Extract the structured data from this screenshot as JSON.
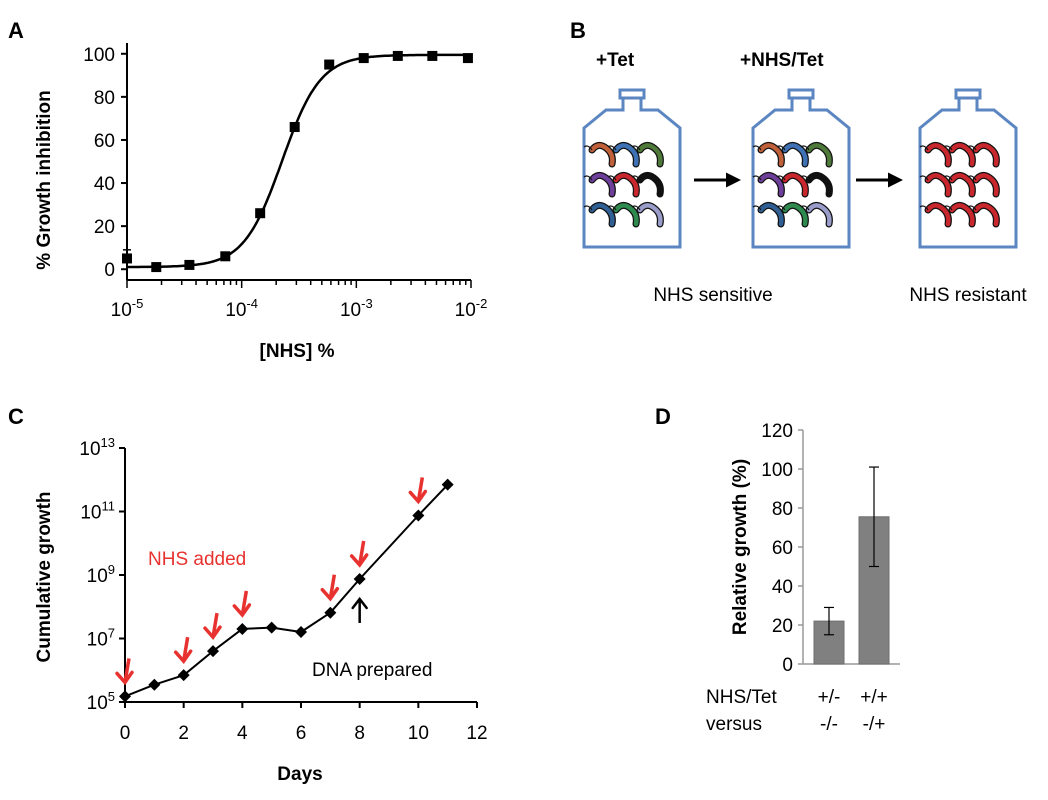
{
  "colors": {
    "axis": "#000000",
    "bar_fill": "#808080",
    "arrow_red": "#e8322f",
    "bottle_stroke": "#5b86c1",
    "grid_axis_d": "#999999"
  },
  "panelA": {
    "letter": "A",
    "chart_data": {
      "type": "scatter",
      "xscale": "log",
      "xlim": [
        1e-05,
        0.01
      ],
      "ylim": [
        -5,
        105
      ],
      "xlabel": "[NHS] %",
      "ylabel": "% Growth inhibition",
      "yticks": [
        0,
        20,
        40,
        60,
        80,
        100
      ],
      "xticks": [
        {
          "value": 1e-05,
          "base": "10",
          "exp": "-5"
        },
        {
          "value": 0.0001,
          "base": "10",
          "exp": "-4"
        },
        {
          "value": 0.001,
          "base": "10",
          "exp": "-3"
        },
        {
          "value": 0.01,
          "base": "10",
          "exp": "-2"
        }
      ],
      "points": [
        {
          "x": 1e-05,
          "y": 5,
          "err": 4
        },
        {
          "x": 1.8e-05,
          "y": 1
        },
        {
          "x": 3.5e-05,
          "y": 2
        },
        {
          "x": 7.2e-05,
          "y": 6
        },
        {
          "x": 0.000145,
          "y": 26
        },
        {
          "x": 0.00029,
          "y": 66
        },
        {
          "x": 0.00058,
          "y": 95
        },
        {
          "x": 0.00116,
          "y": 98
        },
        {
          "x": 0.0023,
          "y": 99
        },
        {
          "x": 0.0046,
          "y": 99
        },
        {
          "x": 0.0094,
          "y": 98
        }
      ],
      "fit": {
        "bottom": 1,
        "top": 99.5,
        "ec50": 0.000225,
        "hill": 2.6
      }
    }
  },
  "panelB": {
    "letter": "B",
    "stage_labels": [
      "+Tet",
      "+NHS/Tet"
    ],
    "caption_sensitive": "NHS sensitive",
    "caption_resistant": "NHS resistant",
    "bottles": [
      {
        "colors": [
          "#c0603a",
          "#3e72b5",
          "#4f7a3a",
          "#6d3f9a",
          "#c8272d",
          "#111111",
          "#2f5f93",
          "#2f8a4f",
          "#9a9cc9"
        ]
      },
      {
        "colors": [
          "#c0603a",
          "#3e72b5",
          "#4f7a3a",
          "#6d3f9a",
          "#c8272d",
          "#111111",
          "#2f5f93",
          "#2f8a4f",
          "#9a9cc9"
        ]
      },
      {
        "colors": [
          "#c8272d",
          "#c8272d",
          "#c8272d",
          "#c8272d",
          "#c8272d",
          "#c8272d",
          "#c8272d",
          "#c8272d",
          "#c8272d"
        ]
      }
    ]
  },
  "panelC": {
    "letter": "C",
    "chart_data": {
      "type": "line",
      "yscale": "log",
      "xlim": [
        0,
        12
      ],
      "ylim": [
        100000,
        10000000000000
      ],
      "xlabel": "Days",
      "ylabel": "Cumulative growth",
      "xticks": [
        0,
        2,
        4,
        6,
        8,
        10,
        12
      ],
      "yticks": [
        {
          "value": 100000,
          "base": "10",
          "exp": "5"
        },
        {
          "value": 10000000,
          "base": "10",
          "exp": "7"
        },
        {
          "value": 1000000000,
          "base": "10",
          "exp": "9"
        },
        {
          "value": 100000000000,
          "base": "10",
          "exp": "11"
        },
        {
          "value": 10000000000000,
          "base": "10",
          "exp": "13"
        }
      ],
      "points": [
        {
          "x": 0,
          "y": 150000
        },
        {
          "x": 1,
          "y": 350000
        },
        {
          "x": 2,
          "y": 700000
        },
        {
          "x": 3,
          "y": 4000000
        },
        {
          "x": 4,
          "y": 20000000
        },
        {
          "x": 5,
          "y": 22000000
        },
        {
          "x": 6,
          "y": 16000000
        },
        {
          "x": 7,
          "y": 65000000
        },
        {
          "x": 8,
          "y": 750000000
        },
        {
          "x": 10,
          "y": 75000000000
        },
        {
          "x": 11,
          "y": 700000000000
        }
      ],
      "nhs_added_days": [
        0,
        2,
        3,
        4,
        7,
        8,
        10
      ],
      "annotation_nhs": "NHS added",
      "annotation_dna": "DNA prepared",
      "dna_day": 8
    }
  },
  "panelD": {
    "letter": "D",
    "chart_data": {
      "type": "bar",
      "ylim": [
        0,
        120
      ],
      "yticks": [
        0,
        20,
        40,
        60,
        80,
        100,
        120
      ],
      "ylabel": "Relative growth (%)",
      "values": [
        22,
        75.5
      ],
      "errors": [
        7,
        25.5
      ],
      "category_rows": [
        {
          "name": "NHS/Tet",
          "labels": [
            "+/-",
            "+/+"
          ]
        },
        {
          "name": "versus",
          "labels": [
            "-/-",
            "-/+"
          ]
        }
      ]
    }
  }
}
